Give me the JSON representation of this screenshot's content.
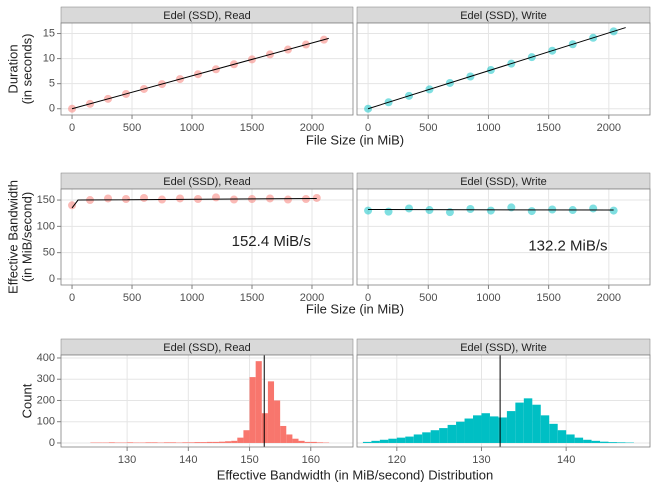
{
  "chart_data": [
    {
      "type": "scatter",
      "xlabel": "File Size (in MiB)",
      "ylabel": [
        "Duration",
        "(in seconds)"
      ],
      "ylim": [
        -1.25,
        17.1
      ],
      "yticks": [
        0,
        5,
        10,
        15
      ],
      "grid": true,
      "panels": [
        {
          "title": "Edel (SSD), Read",
          "color": "#f8766d",
          "xlim": [
            -92,
            2342
          ],
          "xticks": [
            0,
            500,
            1000,
            1500,
            2000
          ],
          "x": [
            0,
            150,
            300,
            450,
            600,
            750,
            900,
            1050,
            1200,
            1350,
            1500,
            1650,
            1800,
            1950,
            2100
          ],
          "y": [
            0,
            0.98,
            1.97,
            2.95,
            3.94,
            4.92,
            5.91,
            6.89,
            7.87,
            8.86,
            9.84,
            10.83,
            11.81,
            12.8,
            13.78
          ],
          "fit": {
            "x": [
              0,
              2140
            ],
            "y": [
              0,
              14.04
            ]
          }
        },
        {
          "title": "Edel (SSD), Write",
          "color": "#00bfc4",
          "xlim": [
            -92,
            2342
          ],
          "xticks": [
            0,
            500,
            1000,
            1500,
            2000
          ],
          "x": [
            0,
            170,
            340,
            510,
            680,
            850,
            1020,
            1190,
            1360,
            1530,
            1700,
            1870,
            2040
          ],
          "y": [
            0,
            1.29,
            2.57,
            3.86,
            5.14,
            6.43,
            7.72,
            9.0,
            10.29,
            11.57,
            12.86,
            14.15,
            15.43
          ],
          "fit": {
            "x": [
              0,
              2140
            ],
            "y": [
              0,
              16.19
            ]
          }
        }
      ]
    },
    {
      "type": "scatter",
      "xlabel": "File Size (in MiB)",
      "ylabel": [
        "Effective Bandwidth",
        "(in MiB/second)"
      ],
      "ylim": [
        -11.5,
        171
      ],
      "yticks": [
        0,
        50,
        100,
        150
      ],
      "grid": true,
      "panels": [
        {
          "title": "Edel (SSD), Read",
          "color": "#f8766d",
          "xlim": [
            -92,
            2342
          ],
          "xticks": [
            0,
            500,
            1000,
            1500,
            2000
          ],
          "x": [
            0,
            150,
            300,
            450,
            600,
            750,
            900,
            1050,
            1200,
            1350,
            1500,
            1650,
            1800,
            1950,
            2040
          ],
          "y": [
            140,
            150,
            153,
            152,
            154,
            151,
            153,
            152,
            155,
            151,
            152,
            153,
            151,
            152,
            154
          ],
          "fit": {
            "x": [
              0,
              50,
              2040
            ],
            "y": [
              135,
              150,
              153
            ]
          },
          "annotation": "152.4 MiB/s"
        },
        {
          "title": "Edel (SSD), Write",
          "color": "#00bfc4",
          "xlim": [
            -92,
            2342
          ],
          "xticks": [
            0,
            500,
            1000,
            1500,
            2000
          ],
          "x": [
            0,
            170,
            340,
            510,
            680,
            850,
            1020,
            1190,
            1360,
            1530,
            1700,
            1870,
            2040
          ],
          "y": [
            130,
            128,
            134,
            131,
            127,
            133,
            130,
            136,
            129,
            132,
            131,
            134,
            130
          ],
          "fit": {
            "x": [
              0,
              2040
            ],
            "y": [
              132,
              131
            ]
          },
          "annotation": "132.2 MiB/s"
        }
      ]
    },
    {
      "type": "histogram",
      "xlabel": "Effective Bandwidth (in MiB/second) Distribution",
      "ylabel": [
        "Count"
      ],
      "ylim": [
        -19,
        414
      ],
      "yticks": [
        0,
        100,
        200,
        300,
        400
      ],
      "grid": true,
      "panels": [
        {
          "title": "Edel (SSD), Read",
          "color": "#f8766d",
          "xlim": [
            119.2,
            166.9
          ],
          "xticks": [
            130,
            140,
            150,
            160
          ],
          "bins": [
            124,
            125,
            126,
            127,
            128,
            129,
            130,
            131,
            132,
            133,
            134,
            135,
            136,
            137,
            138,
            139,
            140,
            141,
            142,
            143,
            144,
            145,
            146,
            147,
            148,
            149,
            150,
            151,
            152,
            153,
            154,
            155,
            156,
            157,
            158,
            159,
            160,
            161,
            162,
            163
          ],
          "counts": [
            2,
            2,
            2,
            3,
            2,
            2,
            3,
            2,
            2,
            3,
            3,
            2,
            3,
            3,
            2,
            3,
            3,
            4,
            4,
            5,
            5,
            6,
            8,
            10,
            25,
            60,
            310,
            385,
            140,
            290,
            200,
            80,
            40,
            20,
            10,
            5,
            5,
            3,
            2
          ],
          "vline": 152.4
        },
        {
          "title": "Edel (SSD), Write",
          "color": "#00bfc4",
          "xlim": [
            115.3,
            149.9
          ],
          "xticks": [
            120,
            130,
            140
          ],
          "bins": [
            116,
            117,
            118,
            119,
            120,
            121,
            122,
            123,
            124,
            125,
            126,
            127,
            128,
            129,
            130,
            131,
            132,
            133,
            134,
            135,
            136,
            137,
            138,
            139,
            140,
            141,
            142,
            143,
            144,
            145,
            146,
            147,
            148
          ],
          "counts": [
            5,
            10,
            15,
            20,
            25,
            30,
            40,
            50,
            60,
            70,
            85,
            100,
            115,
            130,
            140,
            125,
            120,
            150,
            190,
            210,
            180,
            130,
            90,
            60,
            40,
            25,
            15,
            10,
            6,
            4,
            3,
            2
          ],
          "vline": 132.2
        }
      ]
    }
  ]
}
